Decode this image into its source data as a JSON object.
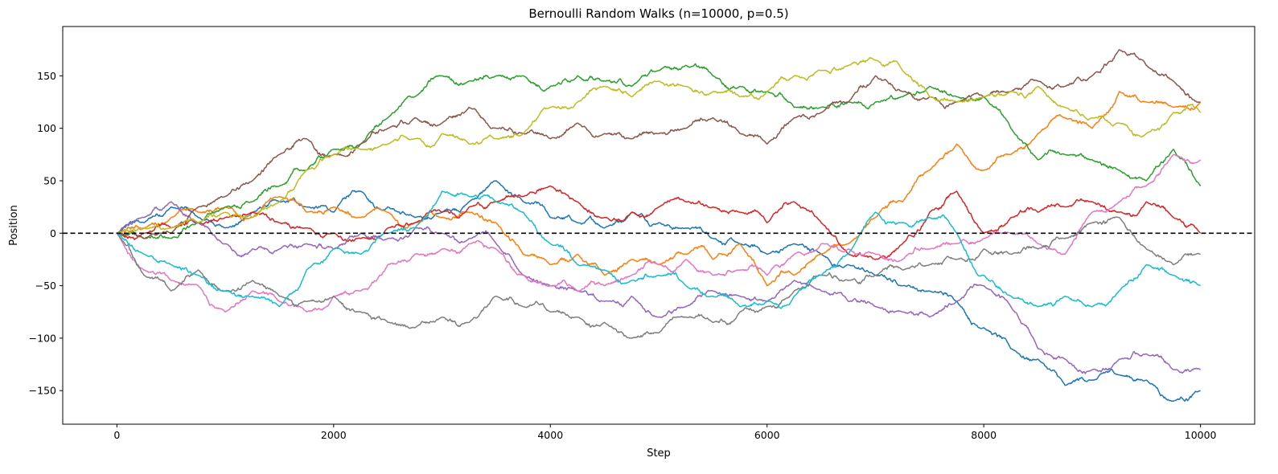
{
  "chart_data": {
    "type": "line",
    "title": "Bernoulli Random Walks (n=10000, p=0.5)",
    "xlabel": "Step",
    "ylabel": "Position",
    "xlim": [
      -500,
      10500
    ],
    "ylim": [
      -182,
      197
    ],
    "xticks": [
      0,
      2000,
      4000,
      6000,
      8000,
      10000
    ],
    "xtick_labels": [
      "0",
      "2000",
      "4000",
      "6000",
      "8000",
      "10000"
    ],
    "yticks": [
      -150,
      -100,
      -50,
      0,
      50,
      100,
      150
    ],
    "ytick_labels": [
      "−150",
      "−100",
      "−50",
      "0",
      "50",
      "100",
      "150"
    ],
    "grid": false,
    "legend": "none",
    "reference_line": {
      "y": 0,
      "style": "dashed",
      "color": "#000000"
    },
    "series": [
      {
        "color": "#1f77b4",
        "x": [
          0,
          250,
          500,
          750,
          1000,
          1250,
          1500,
          1750,
          2000,
          2250,
          2500,
          2750,
          3000,
          3250,
          3500,
          3750,
          4000,
          4250,
          4500,
          4750,
          5000,
          5250,
          5500,
          5750,
          6000,
          6250,
          6500,
          6750,
          7000,
          7250,
          7500,
          7750,
          8000,
          8250,
          8500,
          8750,
          9000,
          9250,
          9500,
          9750,
          10000
        ],
        "y": [
          0,
          10,
          25,
          15,
          5,
          20,
          30,
          25,
          20,
          40,
          25,
          15,
          20,
          30,
          50,
          30,
          15,
          10,
          5,
          20,
          10,
          5,
          -5,
          -10,
          -20,
          -10,
          -20,
          -30,
          -40,
          -50,
          -55,
          -65,
          -90,
          -110,
          -120,
          -145,
          -140,
          -135,
          -140,
          -160,
          -150
        ]
      },
      {
        "color": "#ff7f0e",
        "x": [
          0,
          250,
          500,
          750,
          1000,
          1250,
          1500,
          1750,
          2000,
          2250,
          2500,
          2750,
          3000,
          3250,
          3500,
          3750,
          4000,
          4250,
          4500,
          4750,
          5000,
          5250,
          5500,
          5750,
          6000,
          6250,
          6500,
          6750,
          7000,
          7250,
          7500,
          7750,
          8000,
          8250,
          8500,
          8750,
          9000,
          9250,
          9500,
          9750,
          10000
        ],
        "y": [
          0,
          5,
          15,
          20,
          25,
          15,
          35,
          20,
          25,
          15,
          20,
          10,
          15,
          20,
          10,
          -20,
          -30,
          -20,
          -40,
          -25,
          -30,
          -20,
          -25,
          -10,
          -50,
          -40,
          -20,
          -10,
          15,
          30,
          60,
          85,
          60,
          75,
          95,
          110,
          100,
          135,
          125,
          120,
          125
        ]
      },
      {
        "color": "#2ca02c",
        "x": [
          0,
          250,
          500,
          750,
          1000,
          1250,
          1500,
          1750,
          2000,
          2250,
          2500,
          2750,
          3000,
          3250,
          3500,
          3750,
          4000,
          4250,
          4500,
          4750,
          5000,
          5250,
          5500,
          5750,
          6000,
          6250,
          6500,
          6750,
          7000,
          7250,
          7500,
          7750,
          8000,
          8250,
          8500,
          8750,
          9000,
          9250,
          9500,
          9750,
          10000
        ],
        "y": [
          0,
          -5,
          -5,
          10,
          25,
          30,
          45,
          60,
          80,
          85,
          110,
          130,
          150,
          145,
          150,
          150,
          140,
          150,
          145,
          140,
          155,
          160,
          150,
          140,
          135,
          120,
          120,
          125,
          125,
          130,
          140,
          130,
          130,
          100,
          70,
          75,
          70,
          60,
          50,
          80,
          45
        ]
      },
      {
        "color": "#d62728",
        "x": [
          0,
          250,
          500,
          750,
          1000,
          1250,
          1500,
          1750,
          2000,
          2250,
          2500,
          2750,
          3000,
          3250,
          3500,
          3750,
          4000,
          4250,
          4500,
          4750,
          5000,
          5250,
          5500,
          5750,
          6000,
          6250,
          6500,
          6750,
          7000,
          7250,
          7500,
          7750,
          8000,
          8250,
          8500,
          8750,
          9000,
          9250,
          9500,
          9750,
          10000
        ],
        "y": [
          0,
          0,
          5,
          10,
          15,
          20,
          10,
          5,
          0,
          -5,
          5,
          10,
          20,
          25,
          30,
          35,
          45,
          30,
          15,
          20,
          25,
          30,
          25,
          20,
          10,
          30,
          10,
          -20,
          -25,
          -10,
          20,
          40,
          0,
          15,
          20,
          25,
          30,
          20,
          30,
          15,
          0
        ]
      },
      {
        "color": "#9467bd",
        "x": [
          0,
          250,
          500,
          750,
          1000,
          1250,
          1500,
          1750,
          2000,
          2250,
          2500,
          2750,
          3000,
          3250,
          3500,
          3750,
          4000,
          4250,
          4500,
          4750,
          5000,
          5250,
          5500,
          5750,
          6000,
          6250,
          6500,
          6750,
          7000,
          7250,
          7500,
          7750,
          8000,
          8250,
          8500,
          8750,
          9000,
          9250,
          9500,
          9750,
          10000
        ],
        "y": [
          0,
          15,
          30,
          10,
          -10,
          -15,
          -15,
          -10,
          -15,
          0,
          -5,
          5,
          0,
          -5,
          -10,
          -40,
          -50,
          -55,
          -65,
          -60,
          -80,
          -70,
          -55,
          -60,
          -65,
          -45,
          -55,
          -65,
          -70,
          -75,
          -80,
          -65,
          -50,
          -70,
          -110,
          -120,
          -130,
          -120,
          -115,
          -130,
          -130
        ]
      },
      {
        "color": "#8c564b",
        "x": [
          0,
          250,
          500,
          750,
          1000,
          1250,
          1500,
          1750,
          2000,
          2250,
          2500,
          2750,
          3000,
          3250,
          3500,
          3750,
          4000,
          4250,
          4500,
          4750,
          5000,
          5250,
          5500,
          5750,
          6000,
          6250,
          6500,
          6750,
          7000,
          7250,
          7500,
          7750,
          8000,
          8250,
          8500,
          8750,
          9000,
          9250,
          9500,
          9750,
          10000
        ],
        "y": [
          0,
          -5,
          0,
          25,
          35,
          50,
          75,
          90,
          75,
          85,
          100,
          110,
          105,
          120,
          100,
          95,
          90,
          105,
          95,
          90,
          95,
          100,
          110,
          95,
          85,
          110,
          115,
          125,
          150,
          135,
          130,
          125,
          130,
          135,
          145,
          140,
          150,
          175,
          160,
          145,
          125
        ]
      },
      {
        "color": "#e377c2",
        "x": [
          0,
          250,
          500,
          750,
          1000,
          1250,
          1500,
          1750,
          2000,
          2250,
          2500,
          2750,
          3000,
          3250,
          3500,
          3750,
          4000,
          4250,
          4500,
          4750,
          5000,
          5250,
          5500,
          5750,
          6000,
          6250,
          6500,
          6750,
          7000,
          7250,
          7500,
          7750,
          8000,
          8250,
          8500,
          8750,
          9000,
          9250,
          9500,
          9750,
          10000
        ],
        "y": [
          0,
          -35,
          -45,
          -50,
          -75,
          -55,
          -65,
          -75,
          -60,
          -55,
          -30,
          -20,
          -15,
          -10,
          -15,
          -40,
          -50,
          -55,
          -50,
          -40,
          -30,
          -25,
          -40,
          -35,
          -40,
          -20,
          -10,
          -15,
          -20,
          -25,
          -15,
          -10,
          -5,
          0,
          -10,
          -20,
          20,
          30,
          45,
          75,
          70
        ]
      },
      {
        "color": "#7f7f7f",
        "x": [
          0,
          250,
          500,
          750,
          1000,
          1250,
          1500,
          1750,
          2000,
          2250,
          2500,
          2750,
          3000,
          3250,
          3500,
          3750,
          4000,
          4250,
          4500,
          4750,
          5000,
          5250,
          5500,
          5750,
          6000,
          6250,
          6500,
          6750,
          7000,
          7250,
          7500,
          7750,
          8000,
          8250,
          8500,
          8750,
          9000,
          9250,
          9500,
          9750,
          10000
        ],
        "y": [
          0,
          -40,
          -55,
          -35,
          -55,
          -45,
          -60,
          -65,
          -60,
          -75,
          -85,
          -90,
          -80,
          -85,
          -60,
          -70,
          -75,
          -80,
          -85,
          -100,
          -95,
          -80,
          -85,
          -75,
          -70,
          -55,
          -40,
          -45,
          -40,
          -35,
          -30,
          -25,
          -15,
          -20,
          -15,
          -5,
          10,
          15,
          -15,
          -30,
          -20
        ]
      },
      {
        "color": "#bcbd22",
        "x": [
          0,
          250,
          500,
          750,
          1000,
          1250,
          1500,
          1750,
          2000,
          2250,
          2500,
          2750,
          3000,
          3250,
          3500,
          3750,
          4000,
          4250,
          4500,
          4750,
          5000,
          5250,
          5500,
          5750,
          6000,
          6250,
          6500,
          6750,
          7000,
          7250,
          7500,
          7750,
          8000,
          8250,
          8500,
          8750,
          9000,
          9250,
          9500,
          9750,
          10000
        ],
        "y": [
          0,
          5,
          5,
          10,
          20,
          15,
          30,
          60,
          75,
          80,
          85,
          90,
          95,
          85,
          90,
          95,
          120,
          125,
          140,
          130,
          145,
          140,
          135,
          130,
          135,
          150,
          155,
          160,
          165,
          155,
          130,
          125,
          130,
          135,
          140,
          120,
          110,
          105,
          95,
          115,
          115
        ]
      },
      {
        "color": "#17becf",
        "x": [
          0,
          250,
          500,
          750,
          1000,
          1250,
          1500,
          1750,
          2000,
          2250,
          2500,
          2750,
          3000,
          3250,
          3500,
          3750,
          4000,
          4250,
          4500,
          4750,
          5000,
          5250,
          5500,
          5750,
          6000,
          6250,
          6500,
          6750,
          7000,
          7250,
          7500,
          7750,
          8000,
          8250,
          8500,
          8750,
          9000,
          9250,
          9500,
          9750,
          10000
        ],
        "y": [
          0,
          -20,
          -30,
          -40,
          -55,
          -60,
          -70,
          -35,
          -15,
          -20,
          0,
          5,
          40,
          35,
          30,
          20,
          -10,
          -30,
          -35,
          -45,
          -40,
          -50,
          -60,
          -70,
          -65,
          -60,
          -40,
          -20,
          20,
          10,
          15,
          0,
          -40,
          -60,
          -70,
          -60,
          -70,
          -55,
          -30,
          -40,
          -50
        ]
      }
    ]
  }
}
